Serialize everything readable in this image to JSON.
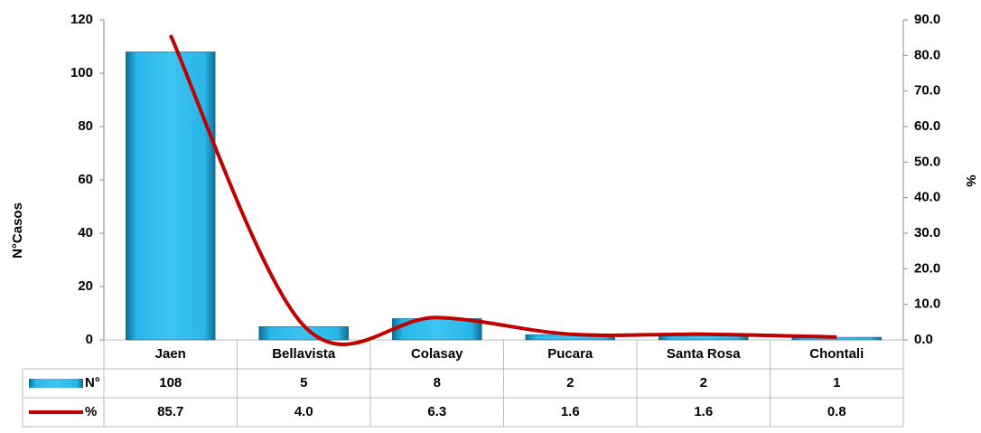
{
  "chart_data": {
    "type": "bar-line",
    "categories": [
      "Jaen",
      "Bellavista",
      "Colasay",
      "Pucara",
      "Santa Rosa",
      "Chontali"
    ],
    "series": [
      {
        "name": "N°",
        "color": "#29b6e8",
        "values": [
          108,
          5,
          8,
          2,
          2,
          1
        ]
      },
      {
        "name": "%",
        "color": "#c00000",
        "axis": "y2",
        "values": [
          85.7,
          4.0,
          6.3,
          1.6,
          1.6,
          0.8
        ],
        "value_labels": [
          "85.7",
          "4.0",
          "6.3",
          "1.6",
          "1.6",
          "0.8"
        ]
      }
    ],
    "y_label": "N°Casos",
    "y2_label": "%",
    "ylim": [
      0,
      120
    ],
    "yticks": [
      0,
      20,
      40,
      60,
      80,
      100,
      120
    ],
    "y2lim": [
      0,
      90
    ],
    "y2ticks": [
      {
        "value": 0,
        "label": "0.0"
      },
      {
        "value": 10,
        "label": "10.0"
      },
      {
        "value": 20,
        "label": "20.0"
      },
      {
        "value": 30,
        "label": "30.0"
      },
      {
        "value": 40,
        "label": "40.0"
      },
      {
        "value": 50,
        "label": "50.0"
      },
      {
        "value": 60,
        "label": "60.0"
      },
      {
        "value": 70,
        "label": "70.0"
      },
      {
        "value": 80,
        "label": "80.0"
      },
      {
        "value": 90,
        "label": "90.0"
      }
    ]
  }
}
